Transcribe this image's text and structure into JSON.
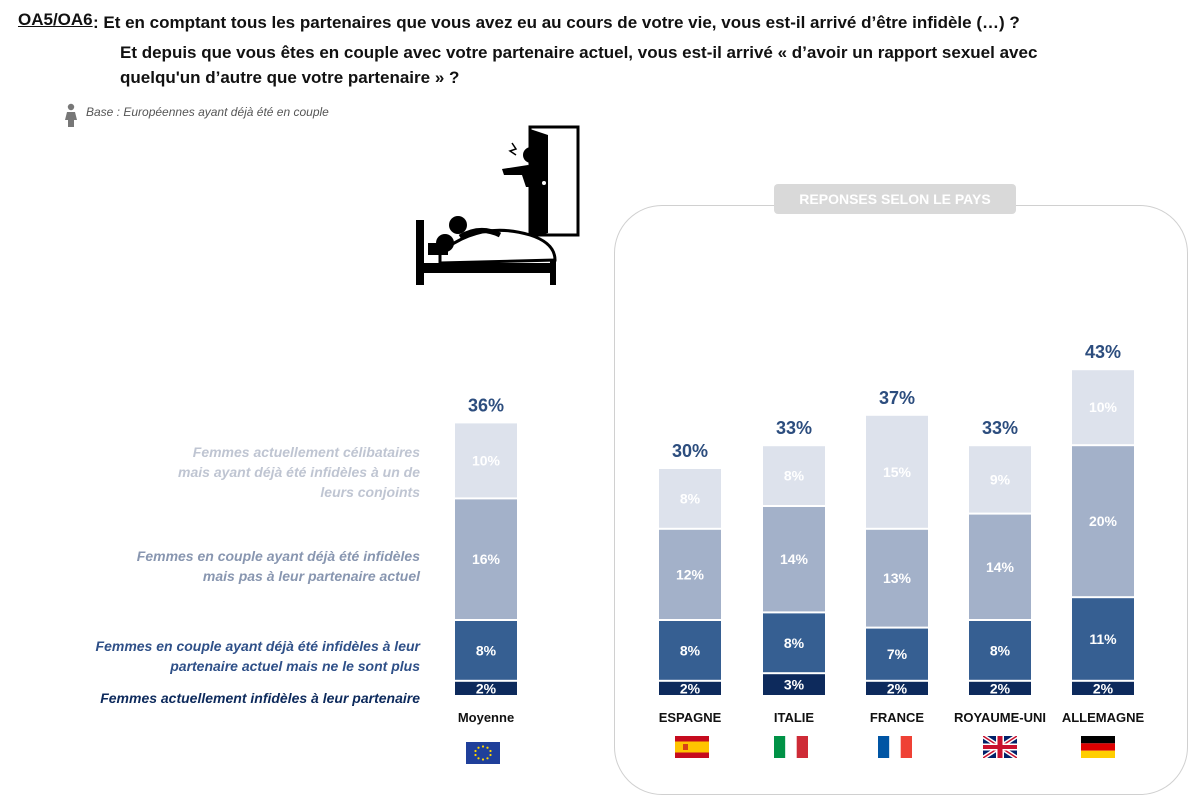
{
  "question": {
    "code": "OA5/OA6",
    "line1": " : Et en comptant tous les partenaires que vous avez eu au cours de votre vie, vous est-il arrivé d’être infidèle (…) ?",
    "line2": "Et depuis que vous êtes en couple avec votre partenaire actuel, vous est-il arrivé « d’avoir un rapport sexuel avec quelqu'un d’autre que votre partenaire » ?"
  },
  "base": "Base : Européennes ayant déjà été en couple",
  "panel_title": "REPONSES SELON  LE PAYS",
  "legend": [
    "Femmes actuellement célibataires mais ayant déjà été infidèles à un de leurs conjoints",
    "Femmes en couple ayant déjà été infidèles mais pas à leur partenaire actuel",
    "Femmes en couple ayant déjà été infidèles à leur partenaire actuel  mais ne le sont plus",
    "Femmes actuellement infidèles à leur partenaire"
  ],
  "flags": [
    "eu-flag-icon",
    "spain-flag-icon",
    "italy-flag-icon",
    "france-flag-icon",
    "uk-flag-icon",
    "germany-flag-icon"
  ],
  "colors": {
    "s0": "#0d2a5c",
    "s1": "#365f92",
    "s2": "#a3b1c9",
    "s3": "#dde2ec",
    "total_label": "#2c4d7e"
  },
  "chart_data": {
    "type": "bar",
    "stacked": true,
    "unit": "%",
    "categories": [
      "Moyenne",
      "ESPAGNE",
      "ITALIE",
      "FRANCE",
      "ROYAUME-UNI",
      "ALLEMAGNE"
    ],
    "totals": [
      36,
      30,
      33,
      37,
      33,
      43
    ],
    "series": [
      {
        "name": "Femmes actuellement infidèles à leur partenaire",
        "values": [
          2,
          2,
          3,
          2,
          2,
          2
        ]
      },
      {
        "name": "Femmes en couple ayant déjà été infidèles à leur partenaire actuel  mais ne le sont plus",
        "values": [
          8,
          8,
          8,
          7,
          8,
          11
        ]
      },
      {
        "name": "Femmes en couple ayant déjà été infidèles mais pas à leur partenaire actuel",
        "values": [
          16,
          12,
          14,
          13,
          14,
          20
        ]
      },
      {
        "name": "Femmes actuellement célibataires mais ayant déjà été infidèles à un de leurs conjoints",
        "values": [
          10,
          8,
          8,
          15,
          9,
          10
        ]
      }
    ],
    "display_labels": [
      [
        "2%",
        "8%",
        "16%",
        "10%"
      ],
      [
        "2%",
        "8%",
        "12%",
        "8%"
      ],
      [
        "3%",
        "8%",
        "14%",
        "8%"
      ],
      [
        "2%",
        "7%",
        "13%",
        "15%"
      ],
      [
        "2%",
        "8%",
        "14%",
        "9%"
      ],
      [
        "2%",
        "11%",
        "20%",
        "10%"
      ]
    ]
  }
}
